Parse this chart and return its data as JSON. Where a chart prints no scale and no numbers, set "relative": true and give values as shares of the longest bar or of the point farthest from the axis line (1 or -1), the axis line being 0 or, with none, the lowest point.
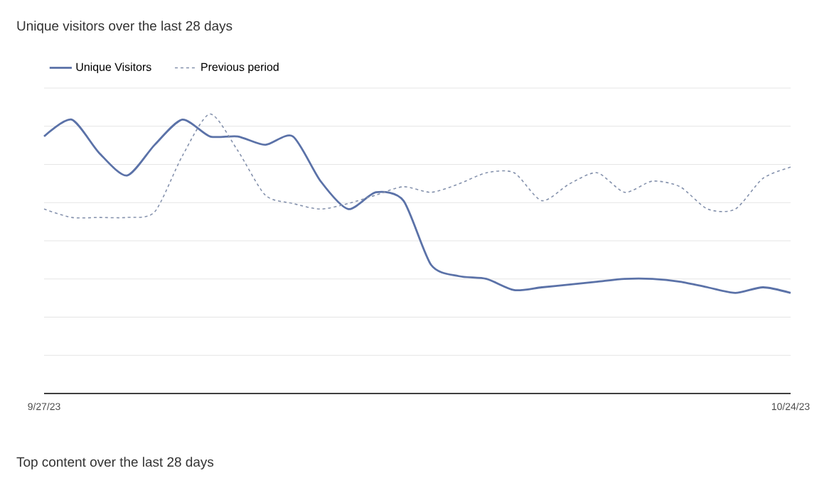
{
  "chart_data": {
    "type": "line",
    "title": "Unique visitors over the last 28 days",
    "annotations": [
      "Top content over the last 28 days"
    ],
    "relative": true,
    "grid": "y",
    "legend": "top left",
    "x": [
      "2023-09-27",
      "2023-09-28",
      "2023-09-29",
      "2023-09-30",
      "2023-10-01",
      "2023-10-02",
      "2023-10-03",
      "2023-10-04",
      "2023-10-05",
      "2023-10-06",
      "2023-10-07",
      "2023-10-08",
      "2023-10-09",
      "2023-10-10",
      "2023-10-11",
      "2023-10-12",
      "2023-10-13",
      "2023-10-14",
      "2023-10-15",
      "2023-10-16",
      "2023-10-17",
      "2023-10-18",
      "2023-10-19",
      "2023-10-20",
      "2023-10-21",
      "2023-10-22",
      "2023-10-23",
      "2023-10-24"
    ],
    "xlim": [
      "2023-09-27",
      "2023-10-24"
    ],
    "xticks": [
      {
        "value": "2023-09-27",
        "label": "9/27/23"
      },
      {
        "value": "2023-10-24",
        "label": "10/24/23"
      }
    ],
    "series": [
      {
        "name": "Unique Visitors",
        "color": "#5b72a8",
        "line_style": "solid",
        "values": [
          0.92,
          0.98,
          0.86,
          0.78,
          0.89,
          0.98,
          0.92,
          0.92,
          0.89,
          0.92,
          0.76,
          0.66,
          0.72,
          0.69,
          0.46,
          0.42,
          0.41,
          0.37,
          0.38,
          0.39,
          0.4,
          0.41,
          0.41,
          0.4,
          0.38,
          0.36,
          0.38,
          0.36
        ]
      },
      {
        "name": "Previous period",
        "color": "#8592ad",
        "line_style": "dashed",
        "values": [
          0.66,
          0.63,
          0.63,
          0.63,
          0.65,
          0.85,
          1,
          0.87,
          0.71,
          0.68,
          0.66,
          0.68,
          0.71,
          0.74,
          0.72,
          0.75,
          0.79,
          0.79,
          0.69,
          0.75,
          0.79,
          0.72,
          0.76,
          0.74,
          0.66,
          0.66,
          0.77,
          0.81
        ]
      }
    ]
  }
}
